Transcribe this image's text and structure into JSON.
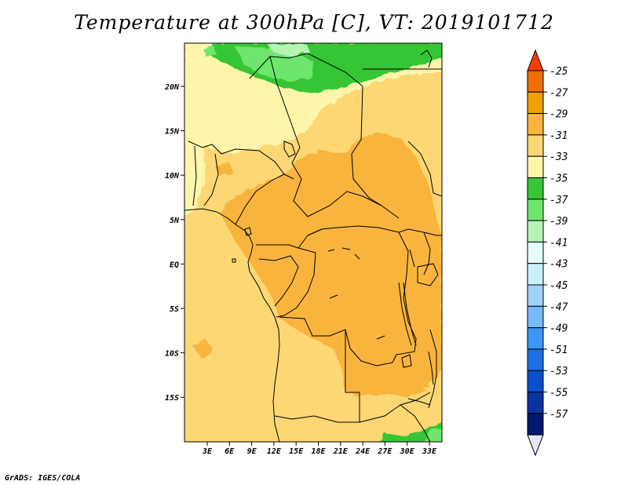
{
  "title": "Temperature at 300hPa [C], VT: 2019101712",
  "credit": "GrADS: IGES/COLA",
  "map": {
    "lon_labels": [
      "3E",
      "6E",
      "9E",
      "12E",
      "15E",
      "18E",
      "21E",
      "24E",
      "27E",
      "30E",
      "33E"
    ],
    "lat_labels": [
      "20N",
      "15N",
      "10N",
      "5N",
      "EQ",
      "5S",
      "10S",
      "15S"
    ]
  },
  "colorbar": {
    "orientation": "vertical",
    "levels": [
      "-25",
      "-27",
      "-29",
      "-31",
      "-33",
      "-35",
      "-37",
      "-39",
      "-41",
      "-43",
      "-45",
      "-47",
      "-49",
      "-51",
      "-53",
      "-55",
      "-57"
    ],
    "colors": [
      "#fa3c00",
      "#f06e00",
      "#f0a000",
      "#f8b43c",
      "#fcd773",
      "#fff5aa",
      "#36c536",
      "#6ee66e",
      "#b4f5b4",
      "#e6fffa",
      "#c8f0ff",
      "#a0d2fa",
      "#78b9fa",
      "#3c96f5",
      "#1e6ee6",
      "#0a50c8",
      "#0a32a0",
      "#00186e",
      "#e6e6ff"
    ],
    "top_triangle_color": "#fa3c00",
    "bottom_triangle_color": "#e6e6ff"
  }
}
